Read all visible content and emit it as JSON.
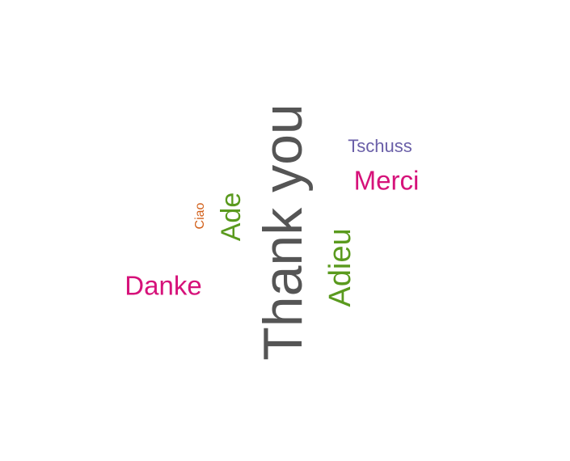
{
  "words": [
    {
      "text": "Thank you",
      "color": "#555555"
    },
    {
      "text": "Ade",
      "color": "#5a9a1e"
    },
    {
      "text": "Ciao",
      "color": "#d2601a"
    },
    {
      "text": "Adieu",
      "color": "#5a9a1e"
    },
    {
      "text": "Danke",
      "color": "#d6127a"
    },
    {
      "text": "Merci",
      "color": "#d6127a"
    },
    {
      "text": "Tschuss",
      "color": "#6a5fa8"
    }
  ]
}
